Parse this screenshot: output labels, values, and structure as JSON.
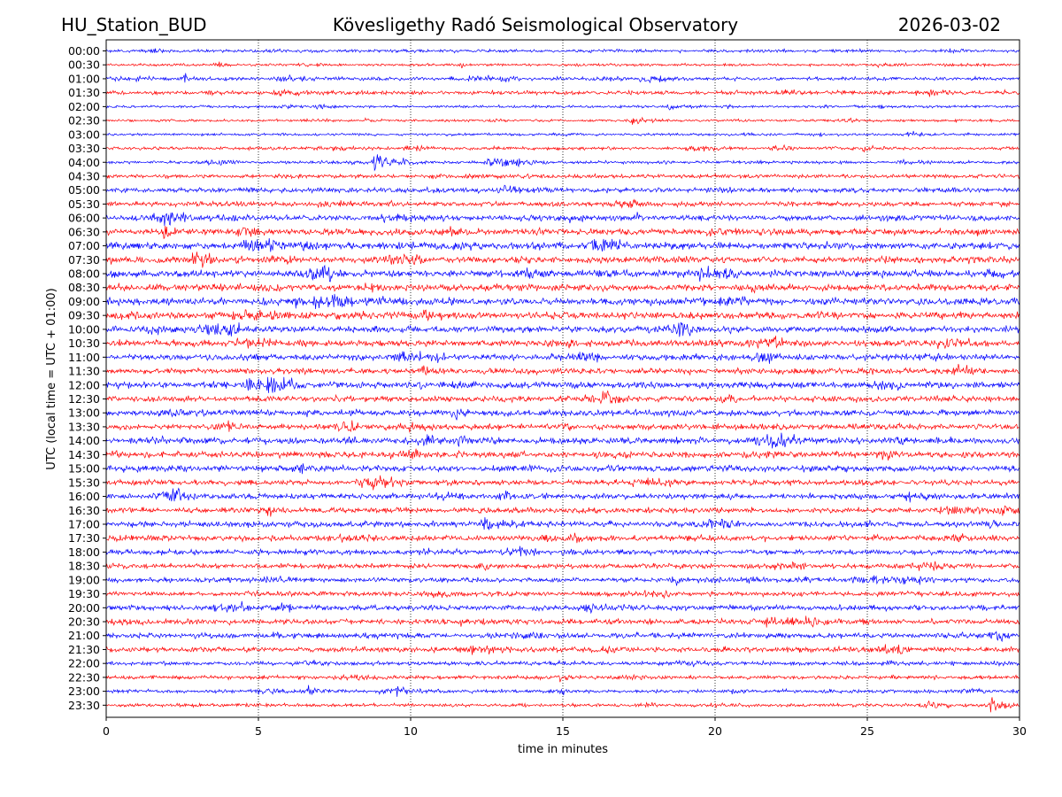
{
  "header": {
    "station": "HU_Station_BUD",
    "observatory": "Köveslige­thy Radó Seismological Observatory",
    "date": "2026-03-02"
  },
  "chart_data": {
    "type": "line",
    "title": "Köveslige­thy Radó Seismological Observatory",
    "xlabel": "time in minutes",
    "ylabel": "UTC (local time = UTC + 01:00)",
    "xlim": [
      0,
      30
    ],
    "x_ticks": [
      0,
      5,
      10,
      15,
      20,
      25,
      30
    ],
    "x_tick_labels": [
      "0",
      "5",
      "10",
      "15",
      "20",
      "25",
      "30"
    ],
    "grid": "vertical dotted at each x tick",
    "trace_colors": [
      "#0000ff",
      "#ff0000"
    ],
    "row_labels": [
      "00:00",
      "00:30",
      "01:00",
      "01:30",
      "02:00",
      "02:30",
      "03:00",
      "03:30",
      "04:00",
      "04:30",
      "05:00",
      "05:30",
      "06:00",
      "06:30",
      "07:00",
      "07:30",
      "08:00",
      "08:30",
      "09:00",
      "09:30",
      "10:00",
      "10:30",
      "11:00",
      "11:30",
      "12:00",
      "12:30",
      "13:00",
      "13:30",
      "14:00",
      "14:30",
      "15:00",
      "15:30",
      "16:00",
      "16:30",
      "17:00",
      "17:30",
      "18:00",
      "18:30",
      "19:00",
      "19:30",
      "20:00",
      "20:30",
      "21:00",
      "21:30",
      "22:00",
      "22:30",
      "23:00",
      "23:30"
    ],
    "noise_level": [
      0.7,
      0.6,
      0.8,
      0.9,
      0.6,
      0.6,
      0.6,
      0.7,
      0.7,
      0.9,
      1.1,
      1.1,
      1.3,
      1.5,
      1.6,
      1.5,
      1.6,
      1.5,
      1.6,
      1.6,
      1.5,
      1.5,
      1.4,
      1.3,
      1.5,
      1.3,
      1.4,
      1.3,
      1.5,
      1.4,
      1.4,
      1.2,
      1.3,
      1.2,
      1.3,
      1.3,
      1.2,
      1.1,
      1.1,
      1.1,
      1.2,
      1.2,
      1.2,
      1.1,
      0.9,
      0.9,
      0.8,
      0.8
    ],
    "events": [
      {
        "row": "00:30",
        "start": 3.5,
        "duration": 0.6,
        "amp": 2.0
      },
      {
        "row": "01:00",
        "start": 2.5,
        "duration": 1.0,
        "amp": 1.8
      },
      {
        "row": "01:00",
        "start": 5.5,
        "duration": 2.5,
        "amp": 1.6
      },
      {
        "row": "02:00",
        "start": 18.3,
        "duration": 1.5,
        "amp": 1.6
      },
      {
        "row": "02:30",
        "start": 17.2,
        "duration": 1.2,
        "amp": 2.2
      },
      {
        "row": "03:00",
        "start": 26.3,
        "duration": 0.6,
        "amp": 2.8
      },
      {
        "row": "04:00",
        "start": 8.7,
        "duration": 1.6,
        "amp": 6.0
      },
      {
        "row": "04:00",
        "start": 12.4,
        "duration": 2.2,
        "amp": 4.0
      },
      {
        "row": "16:30",
        "start": 5.2,
        "duration": 0.8,
        "amp": 2.5
      },
      {
        "row": "17:00",
        "start": 12.3,
        "duration": 1.5,
        "amp": 3.5
      },
      {
        "row": "18:00",
        "start": 14.9,
        "duration": 0.7,
        "amp": 3.0
      },
      {
        "row": "18:30",
        "start": 12.2,
        "duration": 0.6,
        "amp": 2.5
      },
      {
        "row": "19:00",
        "start": 18.5,
        "duration": 1.0,
        "amp": 2.2
      },
      {
        "row": "19:00",
        "start": 21.0,
        "duration": 0.8,
        "amp": 2.5
      },
      {
        "row": "20:30",
        "start": 21.5,
        "duration": 2.5,
        "amp": 2.0
      },
      {
        "row": "22:30",
        "start": 14.8,
        "duration": 0.6,
        "amp": 2.2
      },
      {
        "row": "23:00",
        "start": 6.5,
        "duration": 1.5,
        "amp": 2.0
      },
      {
        "row": "23:00",
        "start": 9.5,
        "duration": 1.2,
        "amp": 2.5
      },
      {
        "row": "23:30",
        "start": 29.0,
        "duration": 0.8,
        "amp": 7.0
      }
    ]
  }
}
